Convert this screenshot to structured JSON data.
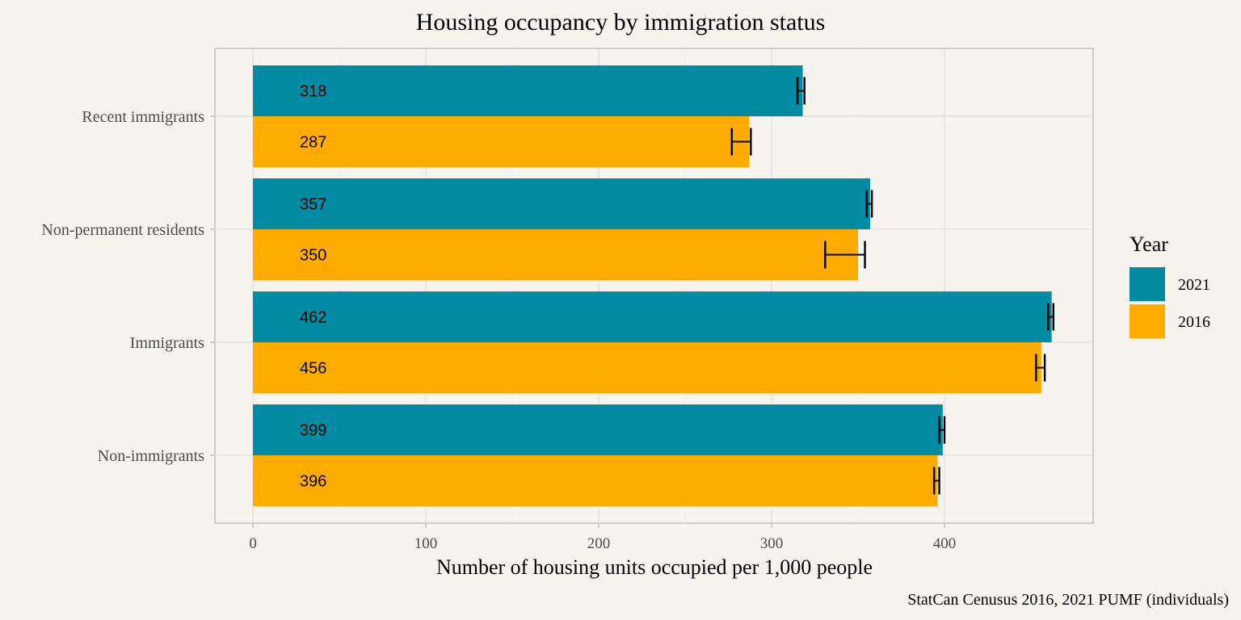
{
  "chart_data": {
    "type": "bar",
    "orientation": "horizontal",
    "title": "Housing occupancy by immigration status",
    "xlabel": "Number of housing units occupied per 1,000 people",
    "ylabel": "",
    "caption": "StatCan Cenusus 2016, 2021 PUMF (individuals)",
    "categories": [
      "Recent immigrants",
      "Non-permanent residents",
      "Immigrants",
      "Non-immigrants"
    ],
    "xlim": [
      -22,
      486
    ],
    "x_ticks": [
      0,
      100,
      200,
      300,
      400
    ],
    "grid": true,
    "legend": {
      "title": "Year",
      "position": "right"
    },
    "series": [
      {
        "name": "2021",
        "color": "#028ba3",
        "values": [
          318,
          357,
          462,
          399
        ],
        "labels": [
          "318",
          "357",
          "462",
          "399"
        ],
        "error_low": [
          315,
          355,
          460,
          397
        ],
        "error_high": [
          319,
          358,
          463,
          400
        ]
      },
      {
        "name": "2016",
        "color": "#ffab00",
        "values": [
          287,
          350,
          456,
          396
        ],
        "labels": [
          "287",
          "350",
          "456",
          "396"
        ],
        "error_low": [
          277,
          331,
          453,
          394
        ],
        "error_high": [
          288,
          354,
          458,
          397
        ]
      }
    ]
  }
}
